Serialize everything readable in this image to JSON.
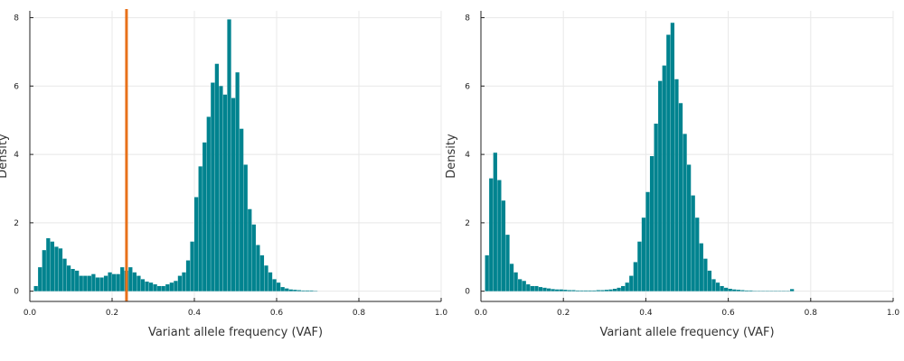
{
  "chart_data": [
    {
      "type": "bar",
      "xlabel": "Variant allele frequency (VAF)",
      "ylabel": "Density",
      "xlim": [
        0,
        1
      ],
      "ylim": [
        -0.3,
        8.2
      ],
      "xticks": [
        0.0,
        0.2,
        0.4,
        0.6,
        0.8,
        1.0
      ],
      "xtick_labels": [
        "0.0",
        "0.2",
        "0.4",
        "0.6",
        "0.8",
        "1.0"
      ],
      "yticks": [
        0,
        2,
        4,
        6,
        8
      ],
      "ytick_labels": [
        "0",
        "2",
        "4",
        "6",
        "8"
      ],
      "grid": true,
      "bin_width": 0.01,
      "bin_start": 0.01,
      "bar_color": "#00838f",
      "values": [
        0.15,
        0.7,
        1.2,
        1.55,
        1.45,
        1.3,
        1.25,
        0.95,
        0.75,
        0.65,
        0.6,
        0.45,
        0.45,
        0.45,
        0.5,
        0.4,
        0.4,
        0.45,
        0.55,
        0.5,
        0.5,
        0.7,
        0.6,
        0.7,
        0.55,
        0.45,
        0.35,
        0.28,
        0.25,
        0.2,
        0.15,
        0.15,
        0.2,
        0.25,
        0.3,
        0.45,
        0.55,
        0.9,
        1.45,
        2.75,
        3.65,
        4.35,
        5.1,
        6.1,
        6.65,
        6.0,
        5.75,
        7.95,
        5.65,
        6.4,
        4.75,
        3.7,
        2.4,
        1.95,
        1.35,
        1.05,
        0.75,
        0.55,
        0.35,
        0.25,
        0.12,
        0.08,
        0.05,
        0.04,
        0.03,
        0.02,
        0.02,
        0.02,
        0.01
      ],
      "vline": {
        "x": 0.235,
        "color": "#e8711a"
      }
    },
    {
      "type": "bar",
      "xlabel": "Variant allele frequency (VAF)",
      "ylabel": "Density",
      "xlim": [
        0,
        1
      ],
      "ylim": [
        -0.3,
        8.2
      ],
      "xticks": [
        0.0,
        0.2,
        0.4,
        0.6,
        0.8,
        1.0
      ],
      "xtick_labels": [
        "0.0",
        "0.2",
        "0.4",
        "0.6",
        "0.8",
        "1.0"
      ],
      "yticks": [
        0,
        2,
        4,
        6,
        8
      ],
      "ytick_labels": [
        "0",
        "2",
        "4",
        "6",
        "8"
      ],
      "grid": true,
      "bin_width": 0.01,
      "bin_start": 0.01,
      "bar_color": "#00838f",
      "values": [
        1.05,
        3.3,
        4.05,
        3.25,
        2.65,
        1.65,
        0.8,
        0.55,
        0.35,
        0.3,
        0.2,
        0.15,
        0.15,
        0.12,
        0.1,
        0.08,
        0.06,
        0.05,
        0.05,
        0.04,
        0.03,
        0.03,
        0.02,
        0.02,
        0.02,
        0.02,
        0.02,
        0.03,
        0.03,
        0.04,
        0.05,
        0.07,
        0.1,
        0.15,
        0.25,
        0.45,
        0.85,
        1.45,
        2.15,
        2.9,
        3.95,
        4.9,
        6.15,
        6.6,
        7.5,
        7.85,
        6.2,
        5.5,
        4.6,
        3.7,
        2.8,
        2.15,
        1.4,
        0.95,
        0.6,
        0.35,
        0.25,
        0.15,
        0.1,
        0.07,
        0.05,
        0.04,
        0.03,
        0.02,
        0.02,
        0.01,
        0.01,
        0.01,
        0.01,
        0.01,
        0.01,
        0.01,
        0.01,
        0.01,
        0.06
      ]
    }
  ]
}
